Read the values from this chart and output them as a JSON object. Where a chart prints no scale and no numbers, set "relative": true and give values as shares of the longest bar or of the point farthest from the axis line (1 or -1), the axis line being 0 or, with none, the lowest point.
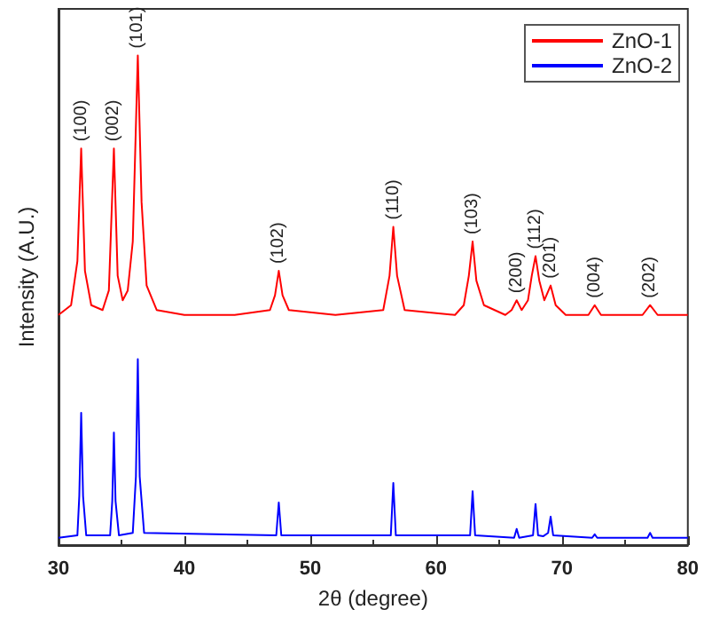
{
  "chart_data": {
    "type": "line",
    "relative": true,
    "xlabel": "2θ (degree)",
    "ylabel": "Intensity (A.U.)",
    "xlim": [
      30,
      80
    ],
    "xticks": [
      30,
      40,
      50,
      60,
      70,
      80
    ],
    "tick_labels": "x",
    "grid": false,
    "legend": "top right",
    "marker": "none",
    "line_style": "solid",
    "series": [
      {
        "name": "ZnO-1",
        "color": "#ff0000",
        "x": [
          30,
          31.0,
          31.5,
          31.8,
          32.1,
          32.6,
          33.5,
          34.0,
          34.4,
          34.7,
          35.1,
          35.5,
          35.9,
          36.3,
          36.6,
          37.0,
          37.8,
          40,
          44,
          46.8,
          47.2,
          47.5,
          47.8,
          48.3,
          52,
          55.8,
          56.3,
          56.6,
          56.9,
          57.5,
          61.5,
          62.2,
          62.6,
          62.9,
          63.2,
          63.8,
          65.5,
          66.0,
          66.4,
          66.8,
          67.3,
          67.6,
          67.9,
          68.2,
          68.6,
          69.1,
          69.5,
          70.3,
          72.1,
          72.6,
          73.1,
          76.4,
          77.0,
          77.6,
          80
        ],
        "values": [
          0.47,
          0.49,
          0.58,
          0.81,
          0.56,
          0.49,
          0.48,
          0.52,
          0.81,
          0.55,
          0.5,
          0.52,
          0.62,
          1.0,
          0.7,
          0.53,
          0.48,
          0.47,
          0.47,
          0.48,
          0.51,
          0.56,
          0.51,
          0.48,
          0.47,
          0.48,
          0.55,
          0.65,
          0.55,
          0.48,
          0.47,
          0.49,
          0.55,
          0.62,
          0.54,
          0.49,
          0.47,
          0.48,
          0.5,
          0.48,
          0.5,
          0.55,
          0.59,
          0.54,
          0.5,
          0.53,
          0.49,
          0.47,
          0.47,
          0.49,
          0.47,
          0.47,
          0.49,
          0.47,
          0.47
        ]
      },
      {
        "name": "ZnO-2",
        "color": "#0000ff",
        "x": [
          30,
          31.5,
          31.65,
          31.8,
          31.95,
          32.2,
          34.1,
          34.27,
          34.4,
          34.53,
          34.8,
          35.9,
          36.15,
          36.3,
          36.45,
          36.8,
          47.3,
          47.5,
          47.7,
          56.4,
          56.6,
          56.8,
          62.7,
          62.9,
          63.1,
          66.2,
          66.4,
          66.6,
          67.7,
          67.9,
          68.1,
          68.5,
          68.9,
          69.1,
          69.3,
          72.4,
          72.6,
          72.8,
          76.8,
          77.0,
          77.2,
          80
        ],
        "values": [
          0.015,
          0.02,
          0.1,
          0.27,
          0.1,
          0.02,
          0.02,
          0.09,
          0.23,
          0.09,
          0.02,
          0.025,
          0.14,
          0.38,
          0.14,
          0.025,
          0.02,
          0.087,
          0.02,
          0.02,
          0.127,
          0.02,
          0.02,
          0.11,
          0.02,
          0.015,
          0.033,
          0.015,
          0.02,
          0.084,
          0.02,
          0.018,
          0.025,
          0.058,
          0.02,
          0.015,
          0.022,
          0.015,
          0.015,
          0.025,
          0.015,
          0.015
        ]
      }
    ],
    "annotations": [
      {
        "text": "(100)",
        "x": 31.8,
        "y": 0.81
      },
      {
        "text": "(002)",
        "x": 34.4,
        "y": 0.81
      },
      {
        "text": "(101)",
        "x": 36.3,
        "y": 1.0
      },
      {
        "text": "(102)",
        "x": 47.5,
        "y": 0.56
      },
      {
        "text": "(110)",
        "x": 56.6,
        "y": 0.65
      },
      {
        "text": "(103)",
        "x": 62.9,
        "y": 0.62
      },
      {
        "text": "(200)",
        "x": 66.4,
        "y": 0.5
      },
      {
        "text": "(112)",
        "x": 67.9,
        "y": 0.59
      },
      {
        "text": "(201)",
        "x": 69.1,
        "y": 0.53
      },
      {
        "text": "(004)",
        "x": 72.6,
        "y": 0.49
      },
      {
        "text": "(202)",
        "x": 77.0,
        "y": 0.49
      }
    ]
  }
}
